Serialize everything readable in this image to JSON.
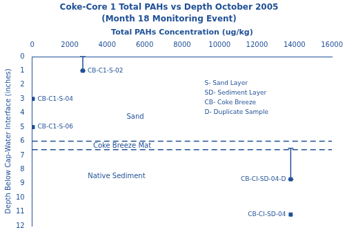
{
  "chart_data": {
    "type": "scatter",
    "title": "Coke-Core 1 Total PAHs vs Depth October 2005",
    "subtitle": "(Month 18 Monitoring Event)",
    "xlabel": "Total PAHs Concentration (ug/kg)",
    "ylabel": "Depth Below Cap-Water Interface (inches)",
    "xlim": [
      0,
      16000
    ],
    "ylim": [
      12,
      0
    ],
    "xticks": [
      0,
      2000,
      4000,
      6000,
      8000,
      10000,
      12000,
      14000,
      16000
    ],
    "yticks": [
      0,
      1,
      2,
      3,
      4,
      5,
      6,
      7,
      8,
      9,
      10,
      11,
      12
    ],
    "color": "#1F5096",
    "marker": "square",
    "grid": false,
    "legend": "none",
    "x": [
      2700,
      30,
      30,
      13800,
      13800
    ],
    "values": [
      1.0,
      3.0,
      5.0,
      8.7,
      11.2
    ],
    "point_labels": [
      "CB-C1-S-02",
      "CB-C1-S-04",
      "CB-C1-S-06",
      "CB-CI-SD-04-D",
      "CB-CI-SD-04"
    ],
    "yerr_lo": [
      1.0,
      0.0,
      0.0,
      2.2,
      0.0
    ],
    "yerr_hi": [
      0.0,
      0.0,
      0.0,
      0.0,
      0.0
    ],
    "hlines": {
      "values": [
        6.0,
        6.6
      ],
      "line_style": "dashed"
    },
    "annotations": [
      {
        "text": "Sand",
        "x": 5500,
        "y": 4.3
      },
      {
        "text": "Coke Breeze Mat",
        "x": 4800,
        "y": 6.32
      },
      {
        "text": "Native Sediment",
        "x": 4500,
        "y": 8.5
      }
    ],
    "text_box": [
      "S- Sand Layer",
      "SD- Sediment Layer",
      "CB- Coke Breeze",
      "D- Duplicate Sample"
    ]
  }
}
